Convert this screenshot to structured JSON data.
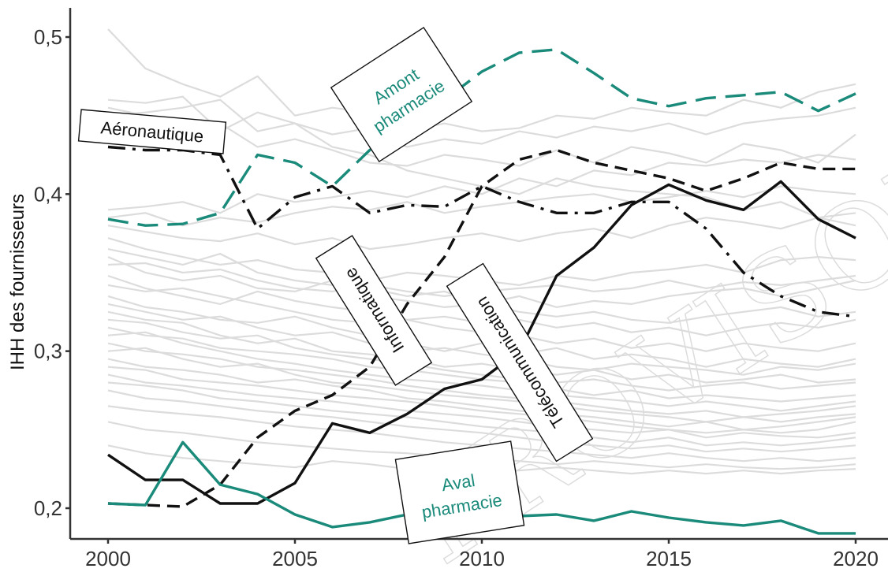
{
  "chart_data": {
    "type": "line",
    "ylabel": "IHH des fournisseurs",
    "xlabel": "",
    "xlim": [
      2000,
      2020
    ],
    "ylim": [
      0.18,
      0.51
    ],
    "x_ticks": [
      "2000",
      "2005",
      "2010",
      "2015",
      "2020"
    ],
    "y_ticks": [
      "0,2",
      "0,3",
      "0,4",
      "0,5"
    ],
    "x": [
      2000,
      2001,
      2002,
      2003,
      2004,
      2005,
      2006,
      2007,
      2008,
      2009,
      2010,
      2011,
      2012,
      2013,
      2014,
      2015,
      2016,
      2017,
      2018,
      2019,
      2020
    ],
    "highlighted_series": [
      {
        "name": "Amont pharmacie",
        "color": "#1a8a7a",
        "style": "long-dash",
        "values": [
          0.384,
          0.38,
          0.381,
          0.388,
          0.425,
          0.42,
          0.405,
          0.428,
          0.445,
          0.46,
          0.478,
          0.49,
          0.492,
          0.477,
          0.461,
          0.456,
          0.461,
          0.463,
          0.465,
          0.453,
          0.464
        ]
      },
      {
        "name": "Aéronautique",
        "color": "#111111",
        "style": "dash-dot",
        "values": [
          0.43,
          0.428,
          0.428,
          0.425,
          0.378,
          0.398,
          0.405,
          0.388,
          0.393,
          0.392,
          0.405,
          0.395,
          0.388,
          0.388,
          0.395,
          0.395,
          0.378,
          0.35,
          0.335,
          0.325,
          0.322
        ]
      },
      {
        "name": "Informatique",
        "color": "#111111",
        "style": "dashed",
        "values": [
          0.203,
          0.202,
          0.201,
          0.215,
          0.245,
          0.262,
          0.272,
          0.29,
          0.33,
          0.36,
          0.405,
          0.422,
          0.428,
          0.42,
          0.415,
          0.41,
          0.402,
          0.41,
          0.42,
          0.416,
          0.416
        ]
      },
      {
        "name": "Télécommunication",
        "color": "#111111",
        "style": "solid",
        "values": [
          0.234,
          0.218,
          0.218,
          0.203,
          0.203,
          0.216,
          0.254,
          0.248,
          0.26,
          0.276,
          0.282,
          0.3,
          0.348,
          0.366,
          0.393,
          0.406,
          0.396,
          0.39,
          0.408,
          0.384,
          0.372
        ]
      },
      {
        "name": "Aval pharmacie",
        "color": "#1a8a7a",
        "style": "solid",
        "values": [
          0.203,
          0.202,
          0.242,
          0.215,
          0.209,
          0.196,
          0.188,
          0.191,
          0.196,
          0.196,
          0.196,
          0.195,
          0.196,
          0.192,
          0.198,
          0.194,
          0.191,
          0.189,
          0.192,
          0.184,
          0.184
        ]
      }
    ],
    "background_series_color": "#dcdcdc",
    "background_series": [
      [
        0.505,
        0.48,
        0.47,
        0.462,
        0.475,
        0.45,
        0.455,
        0.452,
        0.44,
        0.445,
        0.44,
        0.442,
        0.45,
        0.448,
        0.455,
        0.452,
        0.45,
        0.46,
        0.455,
        0.465,
        0.47
      ],
      [
        0.46,
        0.458,
        0.462,
        0.44,
        0.452,
        0.445,
        0.438,
        0.442,
        0.43,
        0.435,
        0.432,
        0.44,
        0.436,
        0.443,
        0.44,
        0.445,
        0.438,
        0.445,
        0.448,
        0.45,
        0.455
      ],
      [
        0.455,
        0.45,
        0.44,
        0.445,
        0.43,
        0.435,
        0.428,
        0.42,
        0.418,
        0.425,
        0.422,
        0.418,
        0.428,
        0.42,
        0.43,
        0.426,
        0.42,
        0.432,
        0.428,
        0.42,
        0.438
      ],
      [
        0.45,
        0.452,
        0.455,
        0.46,
        0.44,
        0.445,
        0.43,
        0.425,
        0.415,
        0.41,
        0.405,
        0.4,
        0.41,
        0.405,
        0.402,
        0.4,
        0.398,
        0.39,
        0.395,
        0.385,
        0.38
      ],
      [
        0.39,
        0.392,
        0.395,
        0.388,
        0.4,
        0.395,
        0.398,
        0.402,
        0.398,
        0.405,
        0.4,
        0.41,
        0.405,
        0.415,
        0.412,
        0.42,
        0.418,
        0.422,
        0.42,
        0.425,
        0.422
      ],
      [
        0.385,
        0.388,
        0.38,
        0.385,
        0.382,
        0.388,
        0.392,
        0.39,
        0.395,
        0.388,
        0.392,
        0.395,
        0.398,
        0.4,
        0.395,
        0.398,
        0.402,
        0.398,
        0.405,
        0.402,
        0.4
      ],
      [
        0.38,
        0.376,
        0.372,
        0.37,
        0.375,
        0.368,
        0.372,
        0.365,
        0.368,
        0.372,
        0.375,
        0.37,
        0.375,
        0.378,
        0.372,
        0.38,
        0.385,
        0.382,
        0.378,
        0.385,
        0.388
      ],
      [
        0.372,
        0.365,
        0.36,
        0.355,
        0.358,
        0.352,
        0.35,
        0.345,
        0.35,
        0.348,
        0.345,
        0.342,
        0.348,
        0.345,
        0.35,
        0.352,
        0.355,
        0.35,
        0.358,
        0.36,
        0.358
      ],
      [
        0.365,
        0.36,
        0.355,
        0.362,
        0.35,
        0.345,
        0.342,
        0.34,
        0.335,
        0.338,
        0.33,
        0.335,
        0.328,
        0.332,
        0.33,
        0.335,
        0.338,
        0.34,
        0.335,
        0.34,
        0.345
      ],
      [
        0.36,
        0.35,
        0.345,
        0.348,
        0.34,
        0.338,
        0.345,
        0.335,
        0.332,
        0.328,
        0.33,
        0.325,
        0.322,
        0.325,
        0.32,
        0.318,
        0.322,
        0.325,
        0.328,
        0.322,
        0.325
      ],
      [
        0.355,
        0.356,
        0.35,
        0.352,
        0.345,
        0.34,
        0.338,
        0.342,
        0.338,
        0.335,
        0.338,
        0.34,
        0.342,
        0.338,
        0.34,
        0.345,
        0.34,
        0.344,
        0.342,
        0.345,
        0.348
      ],
      [
        0.348,
        0.34,
        0.335,
        0.33,
        0.338,
        0.332,
        0.328,
        0.325,
        0.32,
        0.322,
        0.318,
        0.32,
        0.315,
        0.318,
        0.312,
        0.315,
        0.31,
        0.315,
        0.318,
        0.315,
        0.32
      ],
      [
        0.342,
        0.338,
        0.34,
        0.335,
        0.33,
        0.325,
        0.32,
        0.318,
        0.32,
        0.315,
        0.312,
        0.31,
        0.305,
        0.308,
        0.302,
        0.305,
        0.3,
        0.305,
        0.302,
        0.3,
        0.305
      ],
      [
        0.335,
        0.328,
        0.325,
        0.32,
        0.318,
        0.322,
        0.315,
        0.31,
        0.305,
        0.3,
        0.305,
        0.298,
        0.302,
        0.295,
        0.298,
        0.295,
        0.29,
        0.295,
        0.292,
        0.29,
        0.295
      ],
      [
        0.33,
        0.325,
        0.32,
        0.322,
        0.315,
        0.31,
        0.312,
        0.305,
        0.3,
        0.302,
        0.298,
        0.295,
        0.29,
        0.288,
        0.292,
        0.29,
        0.288,
        0.285,
        0.29,
        0.288,
        0.292
      ],
      [
        0.325,
        0.32,
        0.318,
        0.31,
        0.305,
        0.308,
        0.3,
        0.298,
        0.295,
        0.29,
        0.292,
        0.288,
        0.285,
        0.288,
        0.282,
        0.285,
        0.28,
        0.282,
        0.285,
        0.28,
        0.282
      ],
      [
        0.32,
        0.318,
        0.312,
        0.308,
        0.31,
        0.302,
        0.298,
        0.295,
        0.292,
        0.288,
        0.285,
        0.282,
        0.28,
        0.282,
        0.278,
        0.275,
        0.278,
        0.28,
        0.276,
        0.278,
        0.28
      ],
      [
        0.315,
        0.31,
        0.308,
        0.302,
        0.3,
        0.298,
        0.295,
        0.29,
        0.288,
        0.285,
        0.282,
        0.28,
        0.276,
        0.272,
        0.275,
        0.27,
        0.272,
        0.27,
        0.268,
        0.27,
        0.272
      ],
      [
        0.31,
        0.312,
        0.305,
        0.3,
        0.295,
        0.292,
        0.288,
        0.285,
        0.282,
        0.28,
        0.278,
        0.275,
        0.272,
        0.27,
        0.268,
        0.265,
        0.268,
        0.265,
        0.262,
        0.265,
        0.268
      ],
      [
        0.305,
        0.3,
        0.298,
        0.295,
        0.29,
        0.288,
        0.285,
        0.282,
        0.278,
        0.275,
        0.272,
        0.27,
        0.268,
        0.265,
        0.262,
        0.26,
        0.262,
        0.258,
        0.26,
        0.262,
        0.265
      ],
      [
        0.3,
        0.302,
        0.295,
        0.29,
        0.292,
        0.285,
        0.28,
        0.278,
        0.275,
        0.272,
        0.27,
        0.268,
        0.265,
        0.262,
        0.26,
        0.258,
        0.255,
        0.258,
        0.255,
        0.258,
        0.26
      ],
      [
        0.295,
        0.29,
        0.288,
        0.285,
        0.28,
        0.282,
        0.278,
        0.275,
        0.27,
        0.268,
        0.265,
        0.262,
        0.26,
        0.258,
        0.255,
        0.252,
        0.255,
        0.25,
        0.252,
        0.255,
        0.258
      ],
      [
        0.29,
        0.288,
        0.282,
        0.28,
        0.278,
        0.275,
        0.272,
        0.27,
        0.268,
        0.265,
        0.262,
        0.26,
        0.258,
        0.255,
        0.252,
        0.25,
        0.248,
        0.25,
        0.248,
        0.25,
        0.255
      ],
      [
        0.285,
        0.28,
        0.278,
        0.275,
        0.272,
        0.27,
        0.268,
        0.265,
        0.262,
        0.26,
        0.258,
        0.255,
        0.252,
        0.25,
        0.248,
        0.25,
        0.245,
        0.248,
        0.246,
        0.245,
        0.248
      ],
      [
        0.28,
        0.278,
        0.275,
        0.27,
        0.268,
        0.265,
        0.262,
        0.26,
        0.258,
        0.255,
        0.252,
        0.25,
        0.248,
        0.245,
        0.242,
        0.245,
        0.24,
        0.242,
        0.24,
        0.242,
        0.245
      ],
      [
        0.275,
        0.27,
        0.268,
        0.265,
        0.262,
        0.26,
        0.258,
        0.255,
        0.252,
        0.25,
        0.248,
        0.245,
        0.242,
        0.24,
        0.238,
        0.24,
        0.236,
        0.238,
        0.236,
        0.238,
        0.24
      ],
      [
        0.265,
        0.262,
        0.26,
        0.258,
        0.255,
        0.252,
        0.25,
        0.248,
        0.245,
        0.242,
        0.24,
        0.238,
        0.236,
        0.234,
        0.232,
        0.235,
        0.232,
        0.23,
        0.232,
        0.23,
        0.232
      ],
      [
        0.255,
        0.25,
        0.248,
        0.245,
        0.242,
        0.24,
        0.238,
        0.236,
        0.235,
        0.233,
        0.232,
        0.23,
        0.228,
        0.23,
        0.228,
        0.226,
        0.228,
        0.226,
        0.225,
        0.226,
        0.228
      ],
      [
        0.24,
        0.235,
        0.232,
        0.23,
        0.228,
        0.226,
        0.23,
        0.228,
        0.225,
        0.228,
        0.226,
        0.224,
        0.226,
        0.224,
        0.222,
        0.224,
        0.222,
        0.224,
        0.222,
        0.224,
        0.225
      ]
    ],
    "annotations": [
      {
        "text": "Aéronautique",
        "color": "#111111"
      },
      {
        "text": "Amont",
        "text2": "pharmacie",
        "color": "#1a8a7a"
      },
      {
        "text": "Informatique",
        "color": "#111111"
      },
      {
        "text": "Télécommunication",
        "color": "#111111"
      },
      {
        "text": "Aval",
        "text2": "pharmacie",
        "color": "#1a8a7a"
      }
    ],
    "watermark": "PROVISOIRE"
  }
}
